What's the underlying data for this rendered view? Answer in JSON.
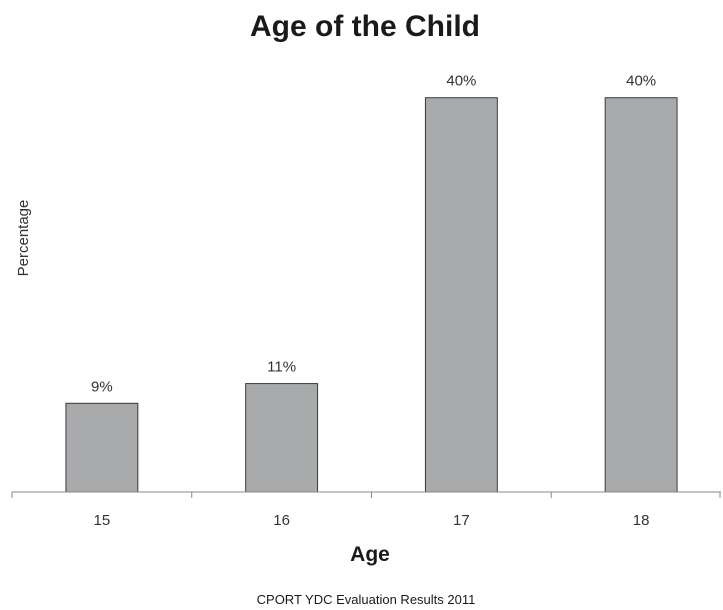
{
  "chart_data": {
    "type": "bar",
    "title": "Age of the Child",
    "xlabel": "Age",
    "ylabel": "Percentage",
    "categories": [
      "15",
      "16",
      "17",
      "18"
    ],
    "values": [
      9,
      11,
      40,
      40
    ],
    "data_labels": [
      "9%",
      "11%",
      "40%",
      "40%"
    ],
    "ylim": [
      0,
      42
    ],
    "grid": false,
    "legend": "none",
    "bar_color": "#a9aaac",
    "bar_edge_color": "#3a3a3a",
    "footnote": "CPORT YDC Evaluation Results 2011"
  }
}
